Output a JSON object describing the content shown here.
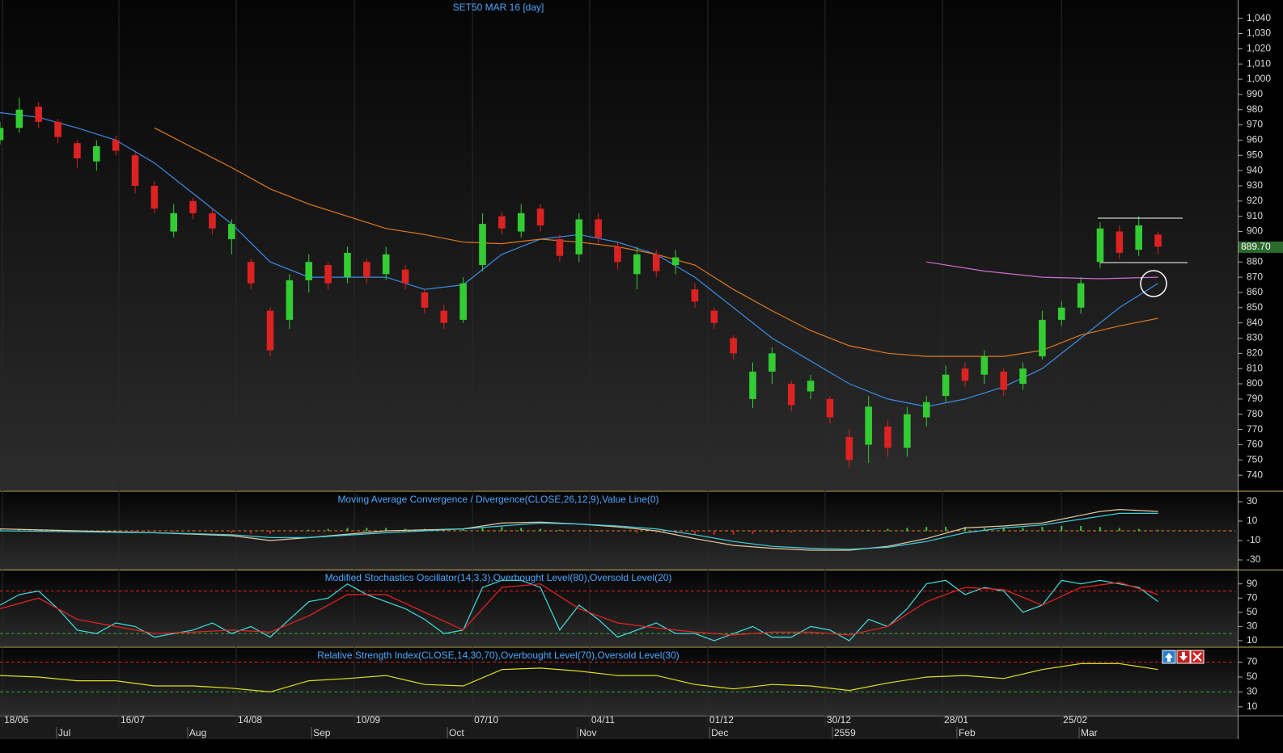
{
  "chart_data": [
    {
      "type": "candlestick",
      "title": "SET50 MAR 16   [day]",
      "xlim": [
        0,
        64
      ],
      "xticks": [
        {
          "value": 0.13,
          "label": "18/06"
        },
        {
          "value": 6.16,
          "label": "16/07"
        },
        {
          "value": 12.24,
          "label": "14/08"
        },
        {
          "value": 18.36,
          "label": "10/09"
        },
        {
          "value": 24.48,
          "label": "07/10"
        },
        {
          "value": 30.55,
          "label": "04/11"
        },
        {
          "value": 36.67,
          "label": "01/12"
        },
        {
          "value": 42.75,
          "label": "30/12"
        },
        {
          "value": 48.83,
          "label": "28/01"
        },
        {
          "value": 54.99,
          "label": "25/02"
        }
      ],
      "xticks_month": [
        {
          "value": 2.93,
          "label": "Jul"
        },
        {
          "value": 9.72,
          "label": "Aug"
        },
        {
          "value": 16.14,
          "label": "Sep"
        },
        {
          "value": 23.18,
          "label": "Oct"
        },
        {
          "value": 29.93,
          "label": "Nov"
        },
        {
          "value": 36.76,
          "label": "Dec"
        },
        {
          "value": 43.13,
          "label": "2559"
        },
        {
          "value": 49.58,
          "label": "Feb"
        },
        {
          "value": 55.91,
          "label": "Mar"
        }
      ],
      "ylim": [
        730,
        1052
      ],
      "yticks": [
        740,
        750,
        760,
        770,
        780,
        790,
        800,
        810,
        820,
        830,
        840,
        850,
        860,
        870,
        880,
        890,
        900,
        910,
        920,
        930,
        940,
        950,
        960,
        970,
        980,
        990,
        {
          "value": 1000,
          "label": "1,000"
        },
        {
          "value": 1010,
          "label": "1,010"
        },
        {
          "value": 1020,
          "label": "1,020"
        },
        {
          "value": 1030,
          "label": "1,030"
        },
        {
          "value": 1040,
          "label": "1,040"
        }
      ],
      "up_color": "#33cc33",
      "down_color": "#dd2222",
      "open": [
        960,
        968,
        982,
        972,
        958,
        946,
        960,
        950,
        930,
        900,
        920,
        912,
        895,
        880,
        848,
        842,
        868,
        878,
        870,
        880,
        872,
        875,
        860,
        848,
        842,
        878,
        910,
        900,
        915,
        895,
        885,
        908,
        890,
        872,
        885,
        878,
        862,
        848,
        830,
        790,
        808,
        800,
        795,
        790,
        765,
        760,
        772,
        758,
        778,
        792,
        810,
        806,
        808,
        800,
        818,
        842,
        850,
        880,
        900,
        888,
        898
      ],
      "high": [
        972,
        988,
        985,
        974,
        960,
        960,
        963,
        952,
        933,
        918,
        922,
        915,
        908,
        882,
        850,
        872,
        885,
        880,
        890,
        882,
        890,
        878,
        862,
        852,
        870,
        912,
        913,
        918,
        918,
        898,
        912,
        912,
        893,
        890,
        888,
        888,
        866,
        850,
        832,
        814,
        824,
        802,
        806,
        792,
        770,
        792,
        776,
        785,
        792,
        812,
        814,
        822,
        810,
        814,
        848,
        854,
        870,
        906,
        904,
        910,
        900
      ],
      "low": [
        957,
        965,
        968,
        958,
        942,
        940,
        950,
        925,
        912,
        896,
        908,
        898,
        885,
        862,
        818,
        836,
        860,
        862,
        866,
        866,
        868,
        862,
        846,
        836,
        840,
        874,
        898,
        896,
        900,
        880,
        880,
        892,
        875,
        862,
        870,
        872,
        850,
        836,
        816,
        784,
        800,
        782,
        790,
        774,
        745,
        748,
        752,
        752,
        772,
        788,
        798,
        800,
        792,
        796,
        816,
        838,
        846,
        876,
        882,
        884,
        885
      ],
      "close": [
        968,
        980,
        972,
        962,
        948,
        956,
        953,
        930,
        915,
        912,
        912,
        902,
        905,
        866,
        822,
        868,
        880,
        866,
        886,
        870,
        885,
        866,
        850,
        840,
        866,
        905,
        902,
        912,
        904,
        884,
        908,
        896,
        880,
        885,
        874,
        883,
        854,
        840,
        820,
        808,
        820,
        786,
        802,
        778,
        750,
        785,
        758,
        780,
        788,
        806,
        802,
        818,
        796,
        810,
        842,
        850,
        866,
        902,
        886,
        904,
        890
      ],
      "series": [
        {
          "color": "#3a8ee6",
          "x": [
            0,
            2,
            4,
            6,
            8,
            10,
            12,
            14,
            16,
            18,
            20,
            22,
            24,
            26,
            28,
            30,
            32,
            34,
            36,
            38,
            40,
            42,
            44,
            46,
            48,
            50,
            52,
            54,
            56,
            58,
            60
          ],
          "values": [
            978,
            975,
            968,
            960,
            945,
            925,
            905,
            880,
            870,
            870,
            870,
            862,
            865,
            885,
            895,
            898,
            893,
            885,
            870,
            850,
            830,
            815,
            800,
            790,
            785,
            790,
            798,
            810,
            830,
            850,
            866
          ]
        },
        {
          "color": "#e07a1f",
          "x": [
            8,
            10,
            12,
            14,
            16,
            18,
            20,
            22,
            24,
            26,
            28,
            30,
            32,
            34,
            36,
            38,
            40,
            42,
            44,
            46,
            48,
            50,
            52,
            54,
            56,
            58,
            60
          ],
          "values": [
            968,
            955,
            942,
            928,
            918,
            910,
            902,
            898,
            893,
            892,
            895,
            893,
            890,
            885,
            878,
            862,
            848,
            835,
            825,
            820,
            818,
            818,
            818,
            822,
            832,
            838,
            843
          ]
        },
        {
          "color": "#d070d0",
          "x": [
            48,
            51,
            54,
            57,
            60
          ],
          "values": [
            880,
            874,
            870,
            869,
            870
          ]
        }
      ],
      "last_price": {
        "value": 889.7,
        "label": "889.70"
      }
    },
    {
      "type": "line",
      "title": "Moving Average Convergence / Divergence(CLOSE,26,12,9),Value Line(0)",
      "ylim": [
        -40,
        40
      ],
      "yticks": [
        -30,
        -10,
        10,
        30
      ],
      "levels": [
        {
          "value": 0,
          "color": "#e07a1f"
        }
      ],
      "bars": {
        "up_color": "#33cc33",
        "down_color": "#dd2222",
        "values": [
          2,
          2,
          1,
          1,
          0,
          0,
          -1,
          -1,
          -1,
          -1,
          -1,
          -1,
          -2,
          -3,
          -3,
          -1,
          1,
          2,
          3,
          3,
          3,
          2,
          2,
          1,
          2,
          3,
          4,
          3,
          2,
          1,
          0,
          -1,
          -1,
          -2,
          -2,
          -3,
          -4,
          -4,
          -4,
          -3,
          -2,
          -2,
          -1,
          -1,
          0,
          1,
          2,
          3,
          4,
          4,
          4,
          3,
          3,
          3,
          4,
          5,
          5,
          4,
          3,
          2,
          1
        ]
      },
      "series": [
        {
          "color": "#e8c8a0",
          "x": [
            0,
            4,
            8,
            12,
            14,
            16,
            20,
            24,
            26,
            28,
            30,
            32,
            34,
            36,
            38,
            40,
            42,
            44,
            46,
            48,
            50,
            52,
            54,
            56,
            57,
            58,
            60
          ],
          "values": [
            2,
            0,
            -2,
            -5,
            -10,
            -7,
            0,
            2,
            8,
            9,
            7,
            4,
            0,
            -8,
            -15,
            -18,
            -20,
            -20,
            -16,
            -8,
            3,
            5,
            8,
            16,
            20,
            22,
            20
          ]
        },
        {
          "color": "#40d0e0",
          "x": [
            0,
            4,
            8,
            12,
            14,
            16,
            20,
            24,
            26,
            28,
            30,
            32,
            34,
            36,
            38,
            40,
            42,
            44,
            46,
            48,
            50,
            52,
            54,
            56,
            58,
            60
          ],
          "values": [
            0,
            -1,
            -2,
            -4,
            -7,
            -7,
            -2,
            2,
            5,
            8,
            7,
            5,
            2,
            -4,
            -11,
            -16,
            -18,
            -19,
            -17,
            -11,
            -2,
            3,
            6,
            12,
            18,
            18
          ]
        }
      ]
    },
    {
      "type": "line",
      "title": "Modified Stochastics Oscillator(14,3,3),Overbought Level(80),Oversold Level(20)",
      "ylim": [
        2,
        109
      ],
      "yticks": [
        10,
        30,
        50,
        70,
        90
      ],
      "levels": [
        {
          "value": 80,
          "color": "#dd2222"
        },
        {
          "value": 20,
          "color": "#33aa33"
        }
      ],
      "series": [
        {
          "color": "#40e0e0",
          "x": [
            0,
            1,
            2,
            3,
            4,
            5,
            6,
            7,
            8,
            9,
            10,
            11,
            12,
            13,
            14,
            15,
            16,
            17,
            18,
            19,
            20,
            21,
            22,
            23,
            24,
            25,
            26,
            27,
            28,
            29,
            30,
            31,
            32,
            33,
            34,
            35,
            36,
            37,
            38,
            39,
            40,
            41,
            42,
            43,
            44,
            45,
            46,
            47,
            48,
            49,
            50,
            51,
            52,
            53,
            54,
            55,
            56,
            57,
            58,
            59,
            60
          ],
          "values": [
            60,
            75,
            80,
            55,
            25,
            20,
            35,
            30,
            15,
            20,
            25,
            35,
            20,
            30,
            15,
            40,
            65,
            70,
            90,
            75,
            65,
            55,
            40,
            20,
            25,
            85,
            95,
            95,
            85,
            25,
            60,
            40,
            15,
            25,
            35,
            20,
            20,
            10,
            20,
            30,
            15,
            15,
            30,
            25,
            10,
            40,
            30,
            55,
            90,
            95,
            75,
            85,
            80,
            50,
            60,
            95,
            90,
            95,
            90,
            85,
            65
          ]
        },
        {
          "color": "#ee2222",
          "x": [
            0,
            2,
            4,
            6,
            8,
            10,
            12,
            14,
            16,
            18,
            20,
            22,
            24,
            26,
            28,
            30,
            32,
            34,
            36,
            38,
            40,
            42,
            44,
            46,
            48,
            50,
            52,
            54,
            56,
            58,
            60
          ],
          "values": [
            55,
            70,
            40,
            30,
            20,
            22,
            25,
            22,
            45,
            75,
            75,
            50,
            25,
            85,
            90,
            55,
            35,
            28,
            22,
            18,
            22,
            22,
            18,
            30,
            65,
            85,
            82,
            60,
            85,
            92,
            75
          ]
        }
      ]
    },
    {
      "type": "line",
      "title": "Relative Strength Index(CLOSE,14,30,70),Overbought Level(70),Oversold Level(30)",
      "ylim": [
        -1,
        89
      ],
      "yticks": [
        10,
        30,
        50,
        70
      ],
      "levels": [
        {
          "value": 70,
          "color": "#dd2222"
        },
        {
          "value": 30,
          "color": "#33aa33"
        }
      ],
      "series": [
        {
          "color": "#e0e020",
          "x": [
            0,
            2,
            4,
            6,
            8,
            10,
            12,
            14,
            16,
            18,
            20,
            22,
            24,
            26,
            28,
            30,
            32,
            34,
            36,
            38,
            40,
            42,
            44,
            46,
            48,
            50,
            52,
            54,
            56,
            58,
            60
          ],
          "values": [
            52,
            50,
            45,
            45,
            38,
            38,
            35,
            30,
            45,
            48,
            52,
            40,
            38,
            60,
            62,
            58,
            52,
            52,
            40,
            34,
            40,
            38,
            32,
            42,
            50,
            52,
            48,
            60,
            68,
            68,
            60
          ]
        }
      ]
    }
  ]
}
